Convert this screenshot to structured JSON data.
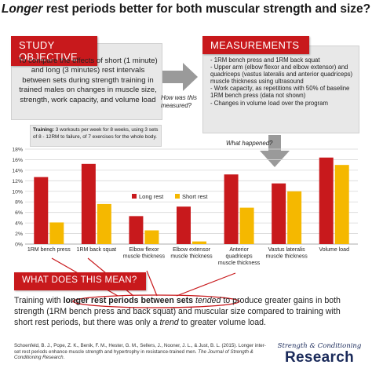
{
  "title": {
    "italic": "Longer",
    "rest": " rest periods better for both muscular strength and size?"
  },
  "study": {
    "heading": "STUDY OBJECTIVE",
    "text": "To compare the effects of short (1 minute) and long (3 minutes) rest intervals between sets during strength training in trained males on changes in muscle size, strength, work capacity, and volume load"
  },
  "training": {
    "label": "Training:",
    "text": " 3 workouts per week for 8 weeks, using 3 sets of 8 - 12RM to failure, of 7 exercises for the whole body."
  },
  "how_measured": "How was this measured?",
  "measurements": {
    "heading": "MEASUREMENTS",
    "items": [
      "- 1RM bench press and 1RM back squat",
      "- Upper arm (elbow flexor and elbow extensor) and quadriceps (vastus lateralis and anterior quadriceps) muscle thickness using ultrasound",
      "- Work capacity, as repetitions with 50% of baseline 1RM bench press (data not shown)",
      "- Changes in volume load over the program"
    ]
  },
  "what_happened": "What happened?",
  "colors": {
    "red": "#c8191c",
    "yellow": "#f5b800",
    "arrow": "#9a9a9a"
  },
  "chart_data": {
    "type": "bar",
    "categories": [
      "1RM bench press",
      "1RM back squat",
      "Elbow flexor muscle thickness",
      "Elbow extensor muscle thickness",
      "Anterior quadriceps muscle thickness",
      "Vastus lateralis muscle thickness",
      "Volume load"
    ],
    "category_labels": [
      [
        "1RM bench press"
      ],
      [
        "1RM back squat"
      ],
      [
        "Elbow flexor",
        "muscle thickness"
      ],
      [
        "Elbow extensor",
        "muscle thickness"
      ],
      [
        "Anterior",
        "quadriceps",
        "muscle thickness"
      ],
      [
        "Vastus lateralis",
        "muscle thickness"
      ],
      [
        "Volume load"
      ]
    ],
    "series": [
      {
        "name": "Long rest",
        "values": [
          12.7,
          15.2,
          5.3,
          7.1,
          13.2,
          11.5,
          16.4
        ]
      },
      {
        "name": "Short rest",
        "values": [
          4.1,
          7.6,
          2.6,
          0.5,
          6.9,
          10.0,
          15.0
        ]
      }
    ],
    "yticks": [
      "0%",
      "2%",
      "4%",
      "6%",
      "8%",
      "10%",
      "12%",
      "14%",
      "16%",
      "18%"
    ],
    "ylim": [
      0,
      18
    ],
    "grid": true,
    "legend": "center"
  },
  "meaning": {
    "heading": "WHAT DOES THIS MEAN?",
    "pre": "Training with ",
    "highlight": "longer rest periods between sets",
    "mid1": " ",
    "tended": "tended",
    "mid2": " to produce greater gains in both strength (1RM bench press and back squat) and muscular size compared to training with short rest periods, but there was only a ",
    "trend": "trend",
    "post": " to greater volume load."
  },
  "citation": {
    "text": "Schoenfeld, B. J., Pope, Z. K., Benik, F. M., Hester, G. M., Sellers, J., Nooner, J. L., & Just, B. L. (2015). Longer inter-set rest periods enhance muscle strength and hypertrophy in resistance-trained men. ",
    "journal": "The Journal of Strength & Conditioning Research",
    "end": "."
  },
  "logo": {
    "top": "Strength & Conditioning",
    "bottom": "Research"
  }
}
